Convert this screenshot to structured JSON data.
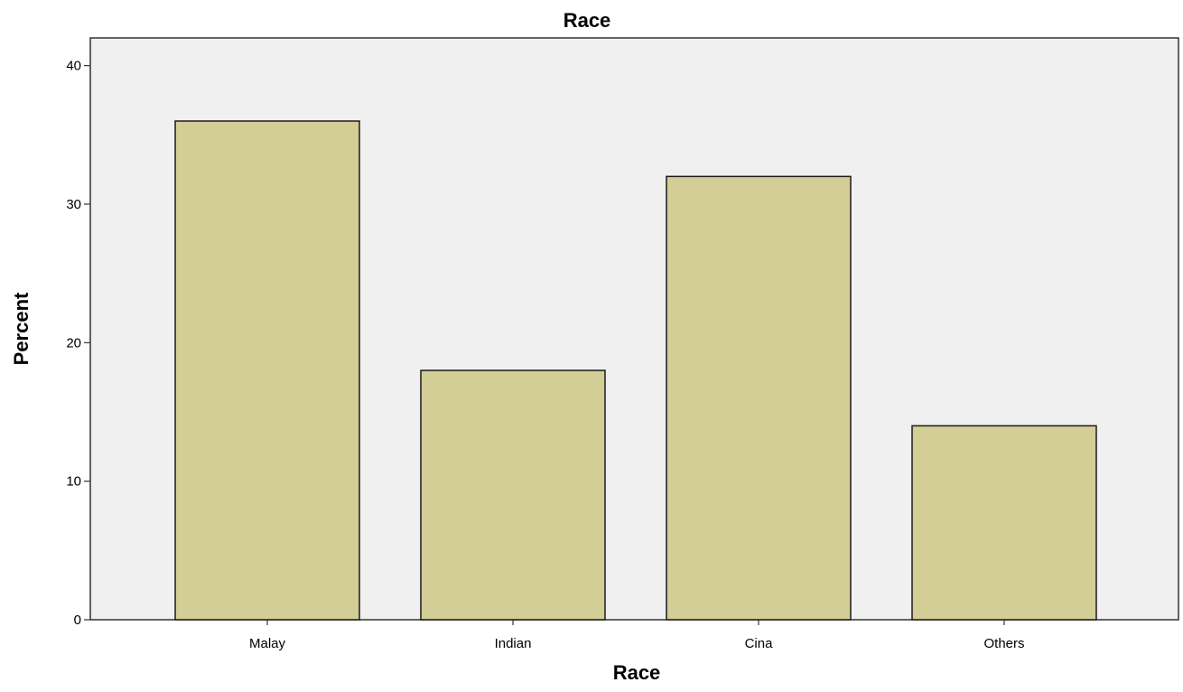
{
  "chart_data": {
    "type": "bar",
    "title": "Race",
    "xlabel": "Race",
    "ylabel": "Percent",
    "categories": [
      "Malay",
      "Indian",
      "Cina",
      "Others"
    ],
    "values": [
      36,
      18,
      32,
      14
    ],
    "ylim": [
      0,
      42
    ],
    "yticks": [
      "0",
      "10",
      "20",
      "30",
      "40"
    ],
    "grid": false,
    "legend": "none",
    "colors": {
      "bar_fill": "#d3cd96",
      "bar_stroke": "#1a1a1a",
      "plot_background": "#f0f0f0",
      "axis": "#333333"
    }
  }
}
